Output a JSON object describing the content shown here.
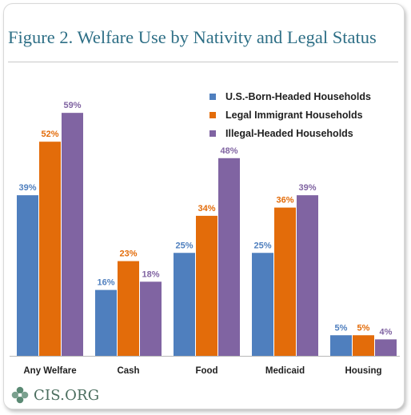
{
  "header": {
    "title": "Figure 2. Welfare Use by Nativity and Legal Status"
  },
  "logo": {
    "text": "CIS.ORG",
    "icon": "cis-flower-logo-icon",
    "color": "#4a6d5e"
  },
  "chart_data": {
    "type": "bar",
    "title": "Figure 2. Welfare Use by Nativity and Legal Status",
    "xlabel": "",
    "ylabel": "",
    "ylim": [
      0,
      60
    ],
    "grid": false,
    "legend_position": "top-right",
    "categories": [
      "Any Welfare",
      "Cash",
      "Food",
      "Medicaid",
      "Housing"
    ],
    "series": [
      {
        "name": "U.S.-Born-Headed Households",
        "color": "#4f7fbe",
        "values": [
          39,
          16,
          25,
          25,
          5
        ],
        "labels": [
          "39%",
          "16%",
          "25%",
          "25%",
          "5%"
        ]
      },
      {
        "name": "Legal Immigrant Households",
        "color": "#e36c0a",
        "values": [
          52,
          23,
          34,
          36,
          5
        ],
        "labels": [
          "52%",
          "23%",
          "34%",
          "36%",
          "5%"
        ]
      },
      {
        "name": "Illegal-Headed Households",
        "color": "#8064a2",
        "values": [
          59,
          18,
          48,
          39,
          4
        ],
        "labels": [
          "59%",
          "18%",
          "48%",
          "39%",
          "4%"
        ]
      }
    ]
  }
}
